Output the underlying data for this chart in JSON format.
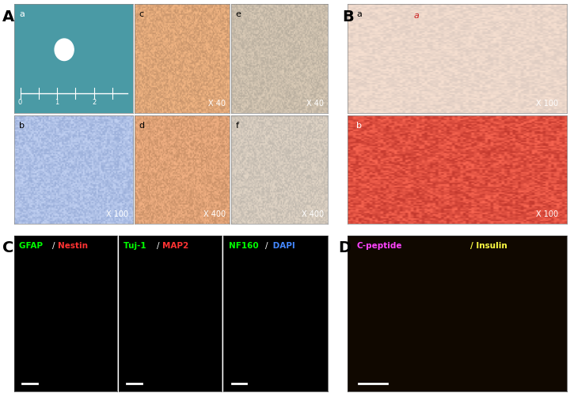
{
  "title_A": "A",
  "title_B": "B",
  "title_C": "C",
  "title_D": "D",
  "bg_color": "#ffffff",
  "panel_A": {
    "a_bg": "#4a9aa5",
    "b_bg": "#b8c8e8",
    "c_bg": "#c8a080",
    "d_bg": "#c09070",
    "e_bg": "#b8b0a0",
    "f_bg": "#c0b8b0"
  },
  "panel_B": {
    "a_bg": "#d8c8c0",
    "b_bg": "#c85040"
  },
  "panel_C": {
    "c1_label1": "GFAP ",
    "c1_label2": "Nestin",
    "c1_color1": "#00ff00",
    "c1_color2": "#ff3333",
    "c2_label1": "Tuj-1 ",
    "c2_label2": "MAP2",
    "c2_color1": "#00ff00",
    "c2_color2": "#ff3333",
    "c3_label1": "NF160",
    "c3_label2": " DAPI",
    "c3_color1": "#00ff00",
    "c3_color2": "#4488ff",
    "bg": "#000000"
  },
  "panel_D": {
    "label1": "C-peptide",
    "label2": "/ Insulin",
    "color1": "#ff44ff",
    "color2": "#ffff44",
    "bg": "#100800"
  }
}
